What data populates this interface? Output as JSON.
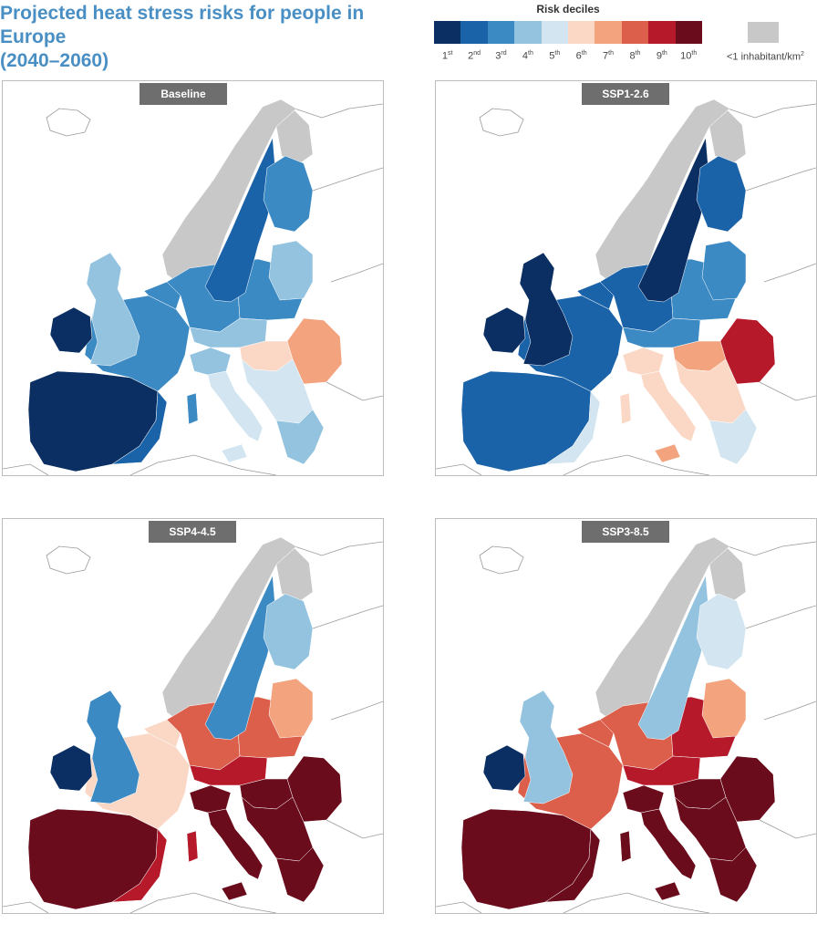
{
  "title": {
    "line1": "Projected heat stress risks for people in Europe",
    "line2": "(2040–2060)"
  },
  "legend": {
    "title": "Risk deciles",
    "colors": [
      "#0b2f63",
      "#1a63a9",
      "#3c8ac4",
      "#93c3df",
      "#d2e5f0",
      "#fad8c5",
      "#f3a47f",
      "#dc5f4b",
      "#b5192a",
      "#6a0c1c"
    ],
    "deciles": [
      {
        "num": "1",
        "sup": "st"
      },
      {
        "num": "2",
        "sup": "nd"
      },
      {
        "num": "3",
        "sup": "rd"
      },
      {
        "num": "4",
        "sup": "th"
      },
      {
        "num": "5",
        "sup": "th"
      },
      {
        "num": "6",
        "sup": "th"
      },
      {
        "num": "7",
        "sup": "th"
      },
      {
        "num": "8",
        "sup": "th"
      },
      {
        "num": "9",
        "sup": "th"
      },
      {
        "num": "10",
        "sup": "th"
      }
    ],
    "no_data_label": "<1 inhabitant/km",
    "no_data_label_sup": "2",
    "no_data_color": "#c8c8c8"
  },
  "panels": [
    {
      "label": "Baseline",
      "regions": {
        "iberia": 1,
        "iberia_coast": 2,
        "france": 3,
        "benelux": 3,
        "uk": 4,
        "ireland": 1,
        "germany": 3,
        "poland": 3,
        "scandinavia_south": 2,
        "finland": 3,
        "baltics": 4,
        "czech_austria": 4,
        "hungary": 6,
        "romania": 7,
        "balkans": 5,
        "greece": 4,
        "italy_north": 4,
        "italy_south": 5,
        "sardinia": 3,
        "sicily": 5
      }
    },
    {
      "label": "SSP1-2.6",
      "regions": {
        "iberia": 2,
        "iberia_coast": 5,
        "france": 2,
        "benelux": 2,
        "uk": 1,
        "ireland": 1,
        "germany": 2,
        "poland": 3,
        "scandinavia_south": 1,
        "finland": 2,
        "baltics": 3,
        "czech_austria": 3,
        "hungary": 7,
        "romania": 9,
        "balkans": 6,
        "greece": 5,
        "italy_north": 6,
        "italy_south": 6,
        "sardinia": 6,
        "sicily": 7
      }
    },
    {
      "label": "SSP4-4.5",
      "regions": {
        "iberia": 10,
        "iberia_coast": 9,
        "france": 6,
        "benelux": 6,
        "uk": 3,
        "ireland": 1,
        "germany": 8,
        "poland": 8,
        "scandinavia_south": 3,
        "finland": 4,
        "baltics": 7,
        "czech_austria": 9,
        "hungary": 10,
        "romania": 10,
        "balkans": 10,
        "greece": 10,
        "italy_north": 10,
        "italy_south": 10,
        "sardinia": 9,
        "sicily": 10
      }
    },
    {
      "label": "SSP3-8.5",
      "regions": {
        "iberia": 10,
        "iberia_coast": 10,
        "france": 8,
        "benelux": 8,
        "uk": 4,
        "ireland": 1,
        "germany": 8,
        "poland": 9,
        "scandinavia_south": 4,
        "finland": 5,
        "baltics": 7,
        "czech_austria": 9,
        "hungary": 10,
        "romania": 10,
        "balkans": 10,
        "greece": 10,
        "italy_north": 10,
        "italy_south": 10,
        "sardinia": 10,
        "sicily": 10
      }
    }
  ]
}
